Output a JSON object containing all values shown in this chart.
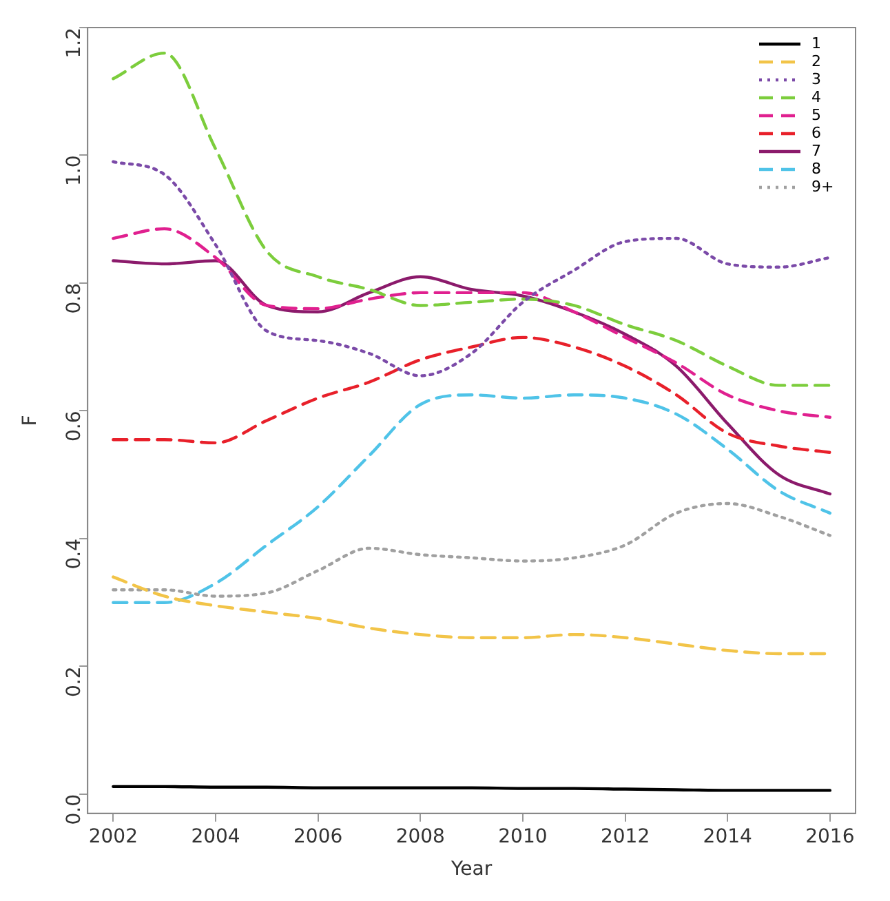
{
  "chart_data": {
    "type": "line",
    "xlabel": "Year",
    "ylabel": "F",
    "legend": "top right",
    "grid": false,
    "x": [
      2002,
      2003,
      2004,
      2005,
      2006,
      2007,
      2008,
      2009,
      2010,
      2011,
      2012,
      2013,
      2014,
      2015,
      2016
    ],
    "xlim": [
      2001.5,
      2016.5
    ],
    "xticks": [
      2002,
      2004,
      2006,
      2008,
      2010,
      2012,
      2014,
      2016
    ],
    "ylim": [
      -0.03,
      1.2
    ],
    "yticks": [
      {
        "value": 0,
        "label": "0.0"
      },
      0.2,
      0.4,
      0.6,
      0.8,
      {
        "value": 1,
        "label": "1.0"
      },
      1.2
    ],
    "series": [
      {
        "name": "1",
        "color": "#000000",
        "line_style": "solid",
        "values": [
          0.012,
          0.012,
          0.011,
          0.011,
          0.01,
          0.01,
          0.01,
          0.01,
          0.009,
          0.009,
          0.008,
          0.007,
          0.006,
          0.006,
          0.006
        ]
      },
      {
        "name": "2",
        "color": "#f2c448",
        "line_style": "dashed",
        "values": [
          0.34,
          0.31,
          0.295,
          0.285,
          0.275,
          0.26,
          0.25,
          0.245,
          0.245,
          0.25,
          0.245,
          0.235,
          0.225,
          0.22,
          0.22
        ]
      },
      {
        "name": "3",
        "color": "#7b4aa8",
        "line_style": "dotted",
        "values": [
          0.99,
          0.97,
          0.86,
          0.725,
          0.71,
          0.69,
          0.655,
          0.69,
          0.77,
          0.82,
          0.865,
          0.87,
          0.83,
          0.825,
          0.84
        ]
      },
      {
        "name": "4",
        "color": "#7ccd3c",
        "line_style": "dashed",
        "values": [
          1.12,
          1.16,
          1.01,
          0.85,
          0.81,
          0.79,
          0.765,
          0.77,
          0.775,
          0.765,
          0.735,
          0.71,
          0.67,
          0.64,
          0.64
        ]
      },
      {
        "name": "5",
        "color": "#e0208f",
        "line_style": "dashed",
        "values": [
          0.87,
          0.885,
          0.84,
          0.765,
          0.76,
          0.775,
          0.785,
          0.785,
          0.785,
          0.755,
          0.715,
          0.675,
          0.625,
          0.6,
          0.59
        ]
      },
      {
        "name": "6",
        "color": "#e8202a",
        "line_style": "dashed",
        "values": [
          0.555,
          0.555,
          0.55,
          0.585,
          0.62,
          0.645,
          0.68,
          0.7,
          0.715,
          0.7,
          0.67,
          0.625,
          0.565,
          0.545,
          0.535
        ]
      },
      {
        "name": "7",
        "color": "#8b1a6b",
        "line_style": "solid",
        "values": [
          0.835,
          0.83,
          0.835,
          0.765,
          0.755,
          0.785,
          0.81,
          0.79,
          0.78,
          0.755,
          0.72,
          0.67,
          0.58,
          0.5,
          0.47
        ]
      },
      {
        "name": "8",
        "color": "#4fc3e8",
        "line_style": "dashed",
        "values": [
          0.3,
          0.3,
          0.33,
          0.39,
          0.45,
          0.53,
          0.61,
          0.625,
          0.62,
          0.625,
          0.62,
          0.595,
          0.54,
          0.475,
          0.44
        ]
      },
      {
        "name": "9+",
        "color": "#a0a0a0",
        "line_style": "dotted",
        "values": [
          0.32,
          0.32,
          0.31,
          0.315,
          0.35,
          0.385,
          0.375,
          0.37,
          0.365,
          0.37,
          0.39,
          0.44,
          0.455,
          0.435,
          0.405
        ]
      }
    ]
  }
}
